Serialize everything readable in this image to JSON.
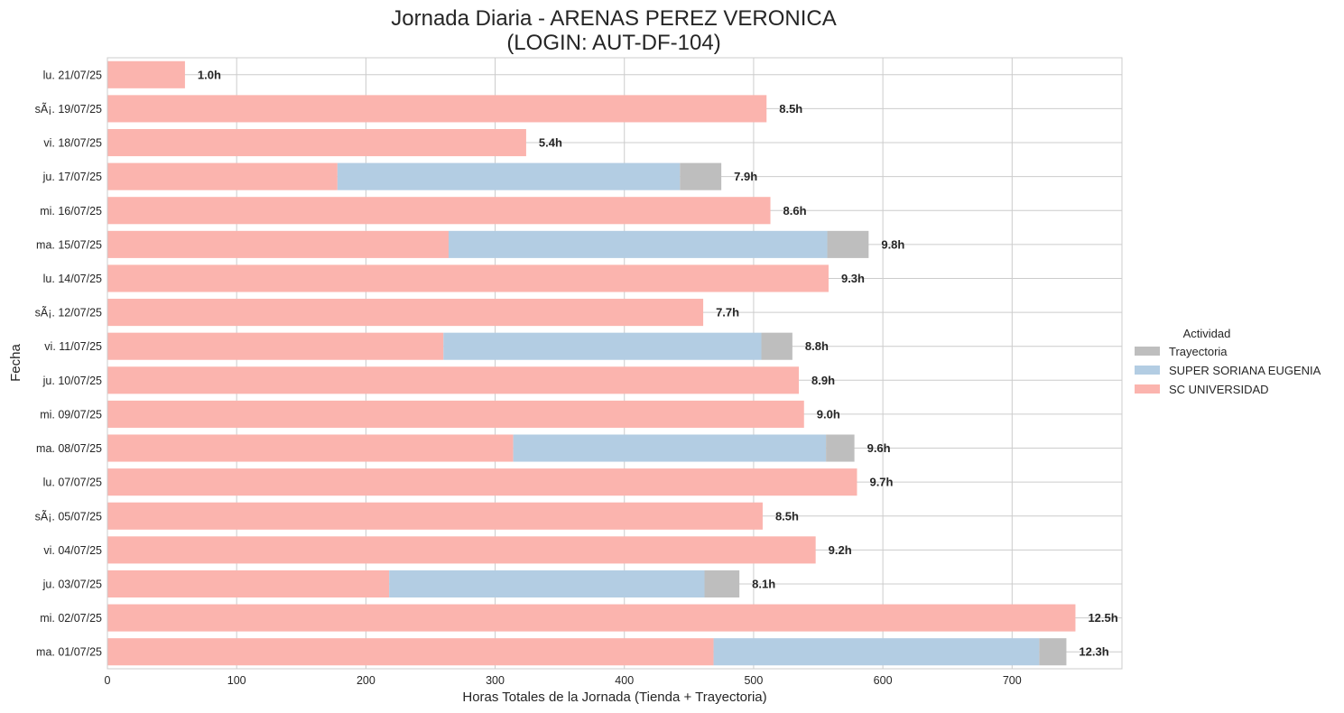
{
  "chart_data": {
    "type": "bar",
    "orientation": "horizontal",
    "stacked": true,
    "title_line1": "Jornada Diaria - ARENAS PEREZ VERONICA",
    "title_line2": "(LOGIN: AUT-DF-104)",
    "xlabel": "Horas Totales de la Jornada (Tienda + Trayectoria)",
    "ylabel": "Fecha",
    "xlim": [
      0,
      785
    ],
    "xticks": [
      0,
      100,
      200,
      300,
      400,
      500,
      600,
      700
    ],
    "grid": true,
    "legend": {
      "title": "Actividad",
      "placement": "right",
      "entries": [
        "Trayectoria",
        "SUPER SORIANA EUGENIA",
        "SC UNIVERSIDAD"
      ]
    },
    "colors": {
      "SC UNIVERSIDAD": "#fbb4ae",
      "SUPER SORIANA EUGENIA": "#b3cde3",
      "Trayectoria": "#bebebe",
      "grid": "#cccccc",
      "text": "#262626"
    },
    "stack_order": [
      "SC UNIVERSIDAD",
      "SUPER SORIANA EUGENIA",
      "Trayectoria"
    ],
    "categories": [
      "lu. 21/07/25",
      "sÃ¡. 19/07/25",
      "vi. 18/07/25",
      "ju. 17/07/25",
      "mi. 16/07/25",
      "ma. 15/07/25",
      "lu. 14/07/25",
      "sÃ¡. 12/07/25",
      "vi. 11/07/25",
      "ju. 10/07/25",
      "mi. 09/07/25",
      "ma. 08/07/25",
      "lu. 07/07/25",
      "sÃ¡. 05/07/25",
      "vi. 04/07/25",
      "ju. 03/07/25",
      "mi. 02/07/25",
      "ma. 01/07/25"
    ],
    "series": [
      {
        "name": "SC UNIVERSIDAD",
        "values": [
          60,
          510,
          324,
          178,
          513,
          264,
          558,
          461,
          260,
          535,
          539,
          314,
          580,
          507,
          548,
          218,
          749,
          469
        ]
      },
      {
        "name": "SUPER SORIANA EUGENIA",
        "values": [
          0,
          0,
          0,
          265,
          0,
          293,
          0,
          0,
          246,
          0,
          0,
          242,
          0,
          0,
          0,
          244,
          0,
          252
        ]
      },
      {
        "name": "Trayectoria",
        "values": [
          0,
          0,
          0,
          32,
          0,
          32,
          0,
          0,
          24,
          0,
          0,
          22,
          0,
          0,
          0,
          27,
          0,
          21
        ]
      }
    ],
    "data_labels": [
      "1.0h",
      "8.5h",
      "5.4h",
      "7.9h",
      "8.6h",
      "9.8h",
      "9.3h",
      "7.7h",
      "8.8h",
      "8.9h",
      "9.0h",
      "9.6h",
      "9.7h",
      "8.5h",
      "9.2h",
      "8.1h",
      "12.5h",
      "12.3h"
    ]
  }
}
